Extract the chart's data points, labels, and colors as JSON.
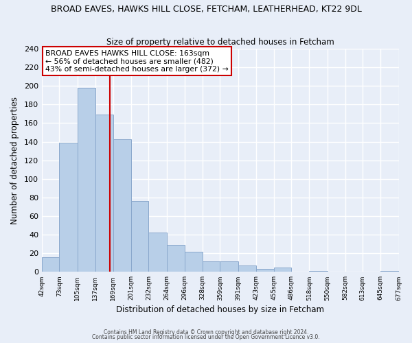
{
  "title": "BROAD EAVES, HAWKS HILL CLOSE, FETCHAM, LEATHERHEAD, KT22 9DL",
  "subtitle": "Size of property relative to detached houses in Fetcham",
  "xlabel": "Distribution of detached houses by size in Fetcham",
  "ylabel": "Number of detached properties",
  "bar_edges": [
    42,
    73,
    105,
    137,
    169,
    201,
    232,
    264,
    296,
    328,
    359,
    391,
    423,
    455,
    486,
    518,
    550,
    582,
    613,
    645,
    677
  ],
  "bar_heights": [
    16,
    139,
    198,
    169,
    143,
    76,
    42,
    29,
    22,
    11,
    11,
    7,
    3,
    5,
    0,
    1,
    0,
    0,
    0,
    1
  ],
  "tick_labels": [
    "42sqm",
    "73sqm",
    "105sqm",
    "137sqm",
    "169sqm",
    "201sqm",
    "232sqm",
    "264sqm",
    "296sqm",
    "328sqm",
    "359sqm",
    "391sqm",
    "423sqm",
    "455sqm",
    "486sqm",
    "518sqm",
    "550sqm",
    "582sqm",
    "613sqm",
    "645sqm",
    "677sqm"
  ],
  "bar_color": "#b8cfe8",
  "bar_edge_color": "#8aa8cc",
  "property_line_x": 163,
  "property_line_color": "#cc0000",
  "annotation_title": "BROAD EAVES HAWKS HILL CLOSE: 163sqm",
  "annotation_line1": "← 56% of detached houses are smaller (482)",
  "annotation_line2": "43% of semi-detached houses are larger (372) →",
  "ylim": [
    0,
    240
  ],
  "yticks": [
    0,
    20,
    40,
    60,
    80,
    100,
    120,
    140,
    160,
    180,
    200,
    220,
    240
  ],
  "bg_color": "#e8eef8",
  "plot_bg_color": "#e8eef8",
  "grid_color": "#ffffff",
  "footer1": "Contains HM Land Registry data © Crown copyright and database right 2024.",
  "footer2": "Contains public sector information licensed under the Open Government Licence v3.0."
}
